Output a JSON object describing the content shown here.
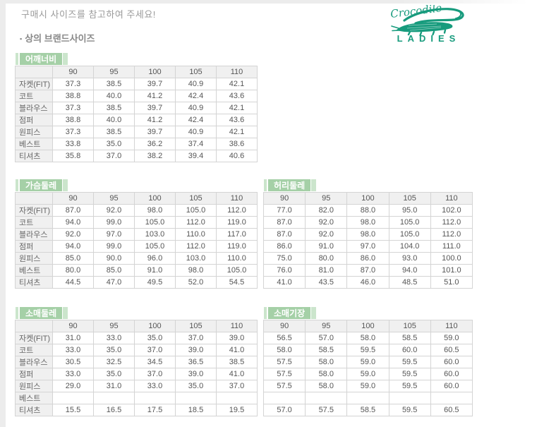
{
  "page": {
    "notice": "구매시 사이즈를 참고하여 주세요!",
    "bullet": "▪",
    "section_title": "상의 브랜드사이즈"
  },
  "logo": {
    "brand": "Crocodile",
    "sub": "LADIES",
    "color": "#179b7d",
    "icon": "crocodile-icon"
  },
  "colors": {
    "label_green": "#a5d0a7",
    "label_green_light": "#cbe5cc",
    "table_header_bg": "#f0f0f0",
    "table_border": "#d4d4d4",
    "logo_green": "#179b7d"
  },
  "sizes": [
    "90",
    "95",
    "100",
    "105",
    "110"
  ],
  "tables": [
    {
      "label": "어깨너비",
      "row_labels": [
        "자켓(FIT)",
        "코트",
        "블라우스",
        "점퍼",
        "원피스",
        "베스트",
        "티셔츠"
      ],
      "rows": [
        [
          "37.3",
          "38.5",
          "39.7",
          "40.9",
          "42.1"
        ],
        [
          "38.8",
          "40.0",
          "41.2",
          "42.4",
          "43.6"
        ],
        [
          "37.3",
          "38.5",
          "39.7",
          "40.9",
          "42.1"
        ],
        [
          "38.8",
          "40.0",
          "41.2",
          "42.4",
          "43.6"
        ],
        [
          "37.3",
          "38.5",
          "39.7",
          "40.9",
          "42.1"
        ],
        [
          "33.8",
          "35.0",
          "36.2",
          "37.4",
          "38.6"
        ],
        [
          "35.8",
          "37.0",
          "38.2",
          "39.4",
          "40.6"
        ]
      ]
    },
    {
      "label": "가슴둘레",
      "row_labels": [
        "자켓(FIT)",
        "코트",
        "블라우스",
        "점퍼",
        "원피스",
        "베스트",
        "티셔츠"
      ],
      "rows": [
        [
          "87.0",
          "92.0",
          "98.0",
          "105.0",
          "112.0"
        ],
        [
          "94.0",
          "99.0",
          "105.0",
          "112.0",
          "119.0"
        ],
        [
          "92.0",
          "97.0",
          "103.0",
          "110.0",
          "117.0"
        ],
        [
          "94.0",
          "99.0",
          "105.0",
          "112.0",
          "119.0"
        ],
        [
          "85.0",
          "90.0",
          "96.0",
          "103.0",
          "110.0"
        ],
        [
          "80.0",
          "85.0",
          "91.0",
          "98.0",
          "105.0"
        ],
        [
          "44.5",
          "47.0",
          "49.5",
          "52.0",
          "54.5"
        ]
      ]
    },
    {
      "label": "허리둘레",
      "row_labels": null,
      "rows": [
        [
          "77.0",
          "82.0",
          "88.0",
          "95.0",
          "102.0"
        ],
        [
          "87.0",
          "92.0",
          "98.0",
          "105.0",
          "112.0"
        ],
        [
          "87.0",
          "92.0",
          "98.0",
          "105.0",
          "112.0"
        ],
        [
          "86.0",
          "91.0",
          "97.0",
          "104.0",
          "111.0"
        ],
        [
          "75.0",
          "80.0",
          "86.0",
          "93.0",
          "100.0"
        ],
        [
          "76.0",
          "81.0",
          "87.0",
          "94.0",
          "101.0"
        ],
        [
          "41.0",
          "43.5",
          "46.0",
          "48.5",
          "51.0"
        ]
      ]
    },
    {
      "label": "소매둘레",
      "row_labels": [
        "자켓(FIT)",
        "코트",
        "블라우스",
        "점퍼",
        "원피스",
        "베스트",
        "티셔츠"
      ],
      "rows": [
        [
          "31.0",
          "33.0",
          "35.0",
          "37.0",
          "39.0"
        ],
        [
          "33.0",
          "35.0",
          "37.0",
          "39.0",
          "41.0"
        ],
        [
          "30.5",
          "32.5",
          "34.5",
          "36.5",
          "38.5"
        ],
        [
          "33.0",
          "35.0",
          "37.0",
          "39.0",
          "41.0"
        ],
        [
          "29.0",
          "31.0",
          "33.0",
          "35.0",
          "37.0"
        ],
        [
          "",
          "",
          "",
          "",
          ""
        ],
        [
          "15.5",
          "16.5",
          "17.5",
          "18.5",
          "19.5"
        ]
      ]
    },
    {
      "label": "소매기장",
      "row_labels": null,
      "rows": [
        [
          "56.5",
          "57.0",
          "58.0",
          "58.5",
          "59.0"
        ],
        [
          "58.0",
          "58.5",
          "59.5",
          "60.0",
          "60.5"
        ],
        [
          "57.5",
          "58.0",
          "59.0",
          "59.5",
          "60.0"
        ],
        [
          "57.5",
          "58.0",
          "59.0",
          "59.5",
          "60.0"
        ],
        [
          "57.5",
          "58.0",
          "59.0",
          "59.5",
          "60.0"
        ],
        [
          "",
          "",
          "",
          "",
          ""
        ],
        [
          "57.0",
          "57.5",
          "58.5",
          "59.5",
          "60.5"
        ]
      ]
    }
  ]
}
